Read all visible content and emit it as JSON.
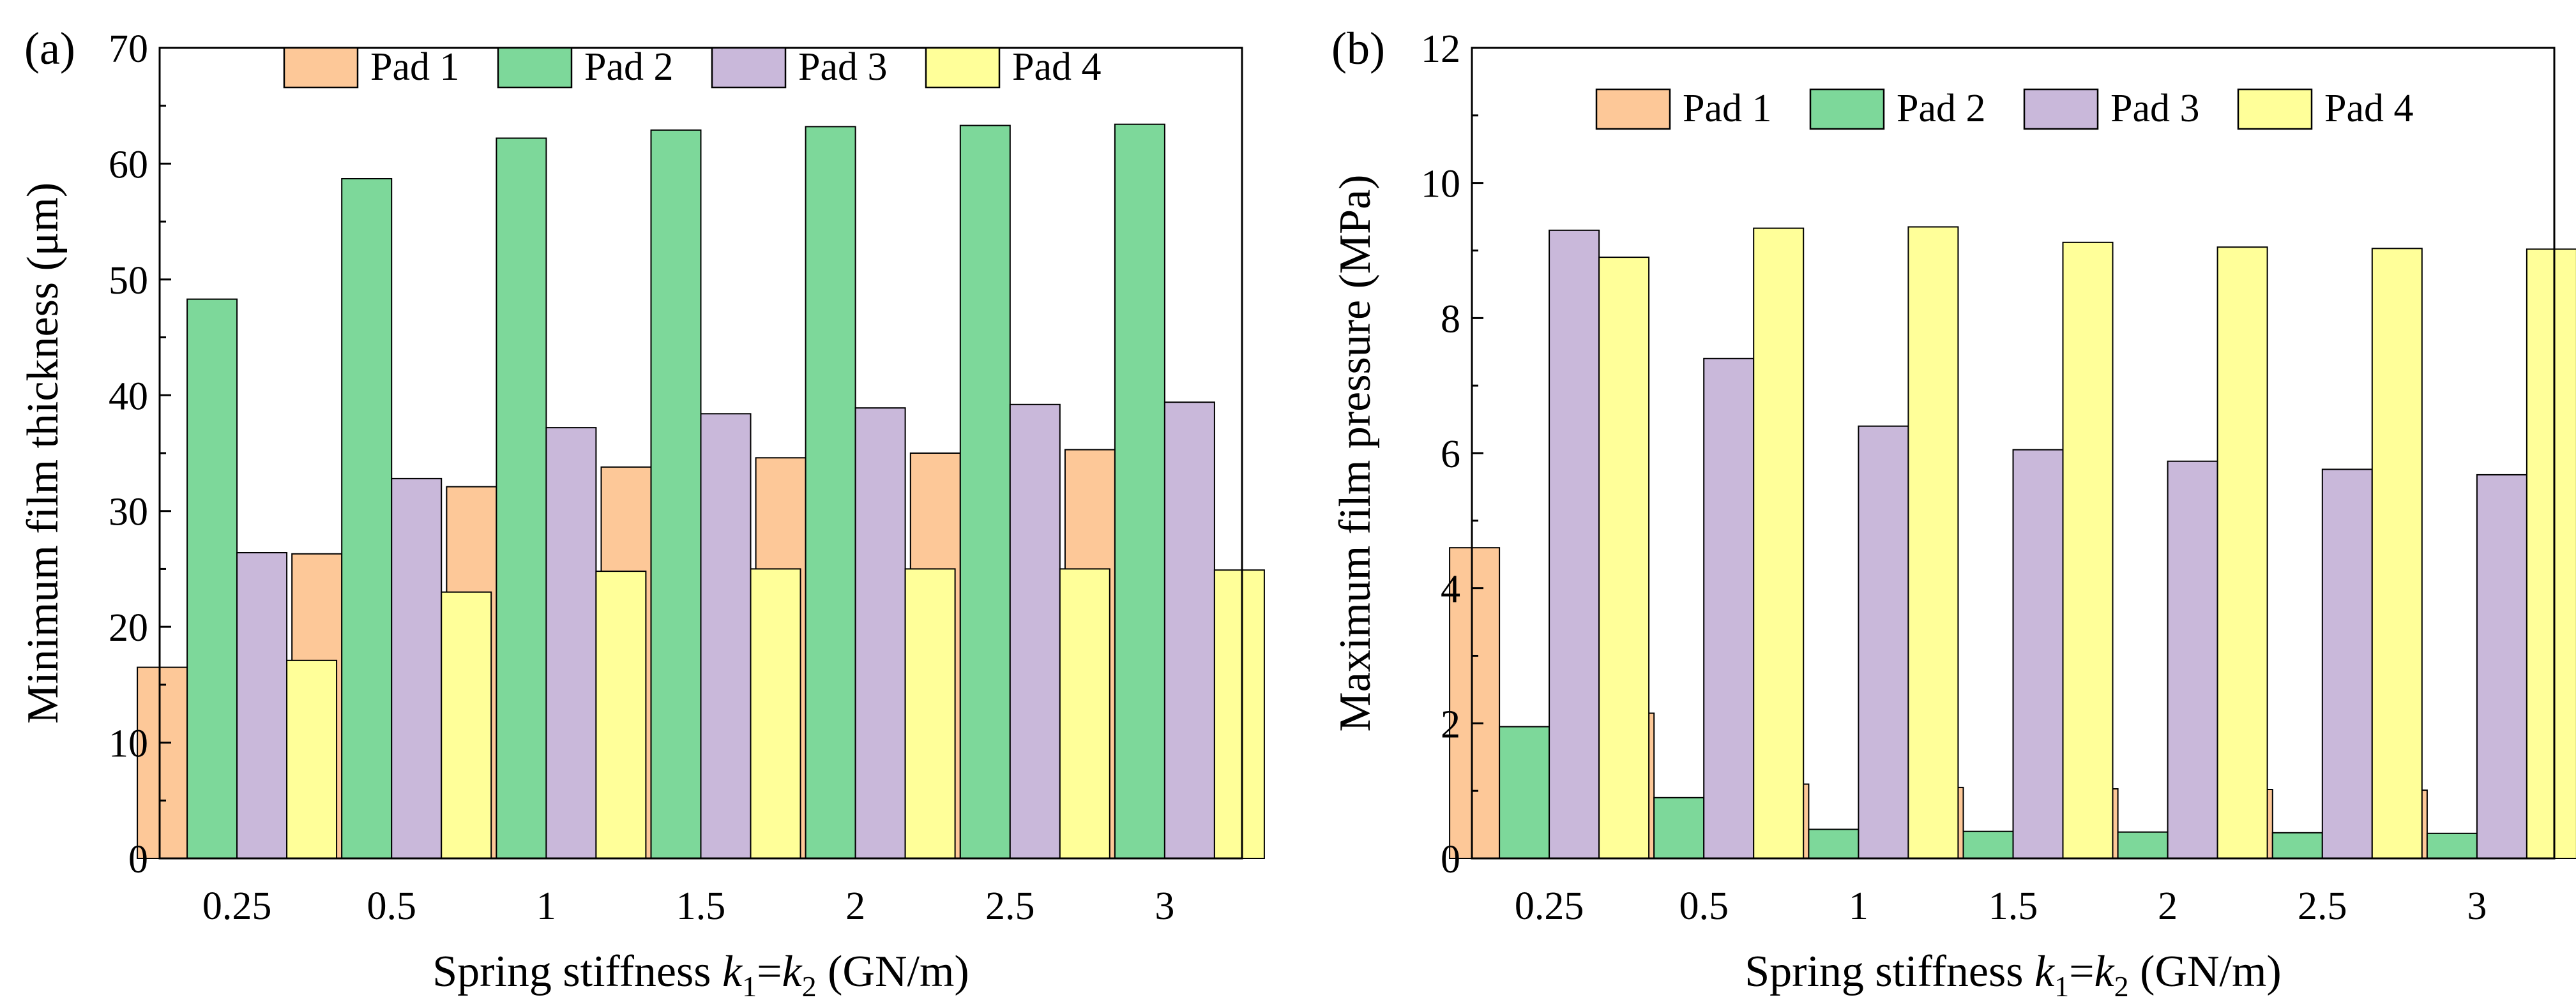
{
  "chart_data": [
    {
      "type": "bar",
      "panel_label": "(a)",
      "categories": [
        "0.25",
        "0.5",
        "1",
        "1.5",
        "2",
        "2.5",
        "3"
      ],
      "series": [
        {
          "name": "Pad 1",
          "color": "#FDC898",
          "values": [
            16.5,
            26.3,
            32.1,
            33.8,
            34.6,
            35.0,
            35.3
          ]
        },
        {
          "name": "Pad 2",
          "color": "#7DD89A",
          "values": [
            48.3,
            58.7,
            62.2,
            62.9,
            63.2,
            63.3,
            63.4
          ]
        },
        {
          "name": "Pad 3",
          "color": "#C9B8DA",
          "values": [
            26.4,
            32.8,
            37.2,
            38.4,
            38.9,
            39.2,
            39.4
          ]
        },
        {
          "name": "Pad 4",
          "color": "#FFFF99",
          "values": [
            17.1,
            23.0,
            24.8,
            25.0,
            25.0,
            25.0,
            24.9
          ]
        }
      ],
      "ylabel": "Minimum film thickness (μm)",
      "xlabel_prefix": "Spring stiffness ",
      "xlabel_var1": "k",
      "xlabel_sub1": "1",
      "xlabel_eq": "=",
      "xlabel_var2": "k",
      "xlabel_sub2": "2",
      "xlabel_suffix": " (GN/m)",
      "ylim": [
        0,
        70
      ],
      "yticks": [
        0,
        10,
        20,
        30,
        40,
        50,
        60,
        70
      ],
      "legend_position": "top-center"
    },
    {
      "type": "bar",
      "panel_label": "(b)",
      "categories": [
        "0.25",
        "0.5",
        "1",
        "1.5",
        "2",
        "2.5",
        "3"
      ],
      "series": [
        {
          "name": "Pad 1",
          "color": "#FDC898",
          "values": [
            4.6,
            2.15,
            1.1,
            1.05,
            1.03,
            1.02,
            1.01
          ]
        },
        {
          "name": "Pad 2",
          "color": "#7DD89A",
          "values": [
            1.95,
            0.9,
            0.43,
            0.4,
            0.39,
            0.38,
            0.37
          ]
        },
        {
          "name": "Pad 3",
          "color": "#C9B8DA",
          "values": [
            9.3,
            7.4,
            6.4,
            6.05,
            5.88,
            5.76,
            5.68
          ]
        },
        {
          "name": "Pad 4",
          "color": "#FFFF99",
          "values": [
            8.9,
            9.33,
            9.35,
            9.12,
            9.05,
            9.03,
            9.02
          ]
        }
      ],
      "ylabel": "Maximum film pressure (MPa)",
      "xlabel_prefix": "Spring stiffness ",
      "xlabel_var1": "k",
      "xlabel_sub1": "1",
      "xlabel_eq": "=",
      "xlabel_var2": "k",
      "xlabel_sub2": "2",
      "xlabel_suffix": " (GN/m)",
      "ylim": [
        0,
        12
      ],
      "yticks": [
        0,
        2,
        4,
        6,
        8,
        10,
        12
      ],
      "legend_position": "top-center"
    }
  ]
}
